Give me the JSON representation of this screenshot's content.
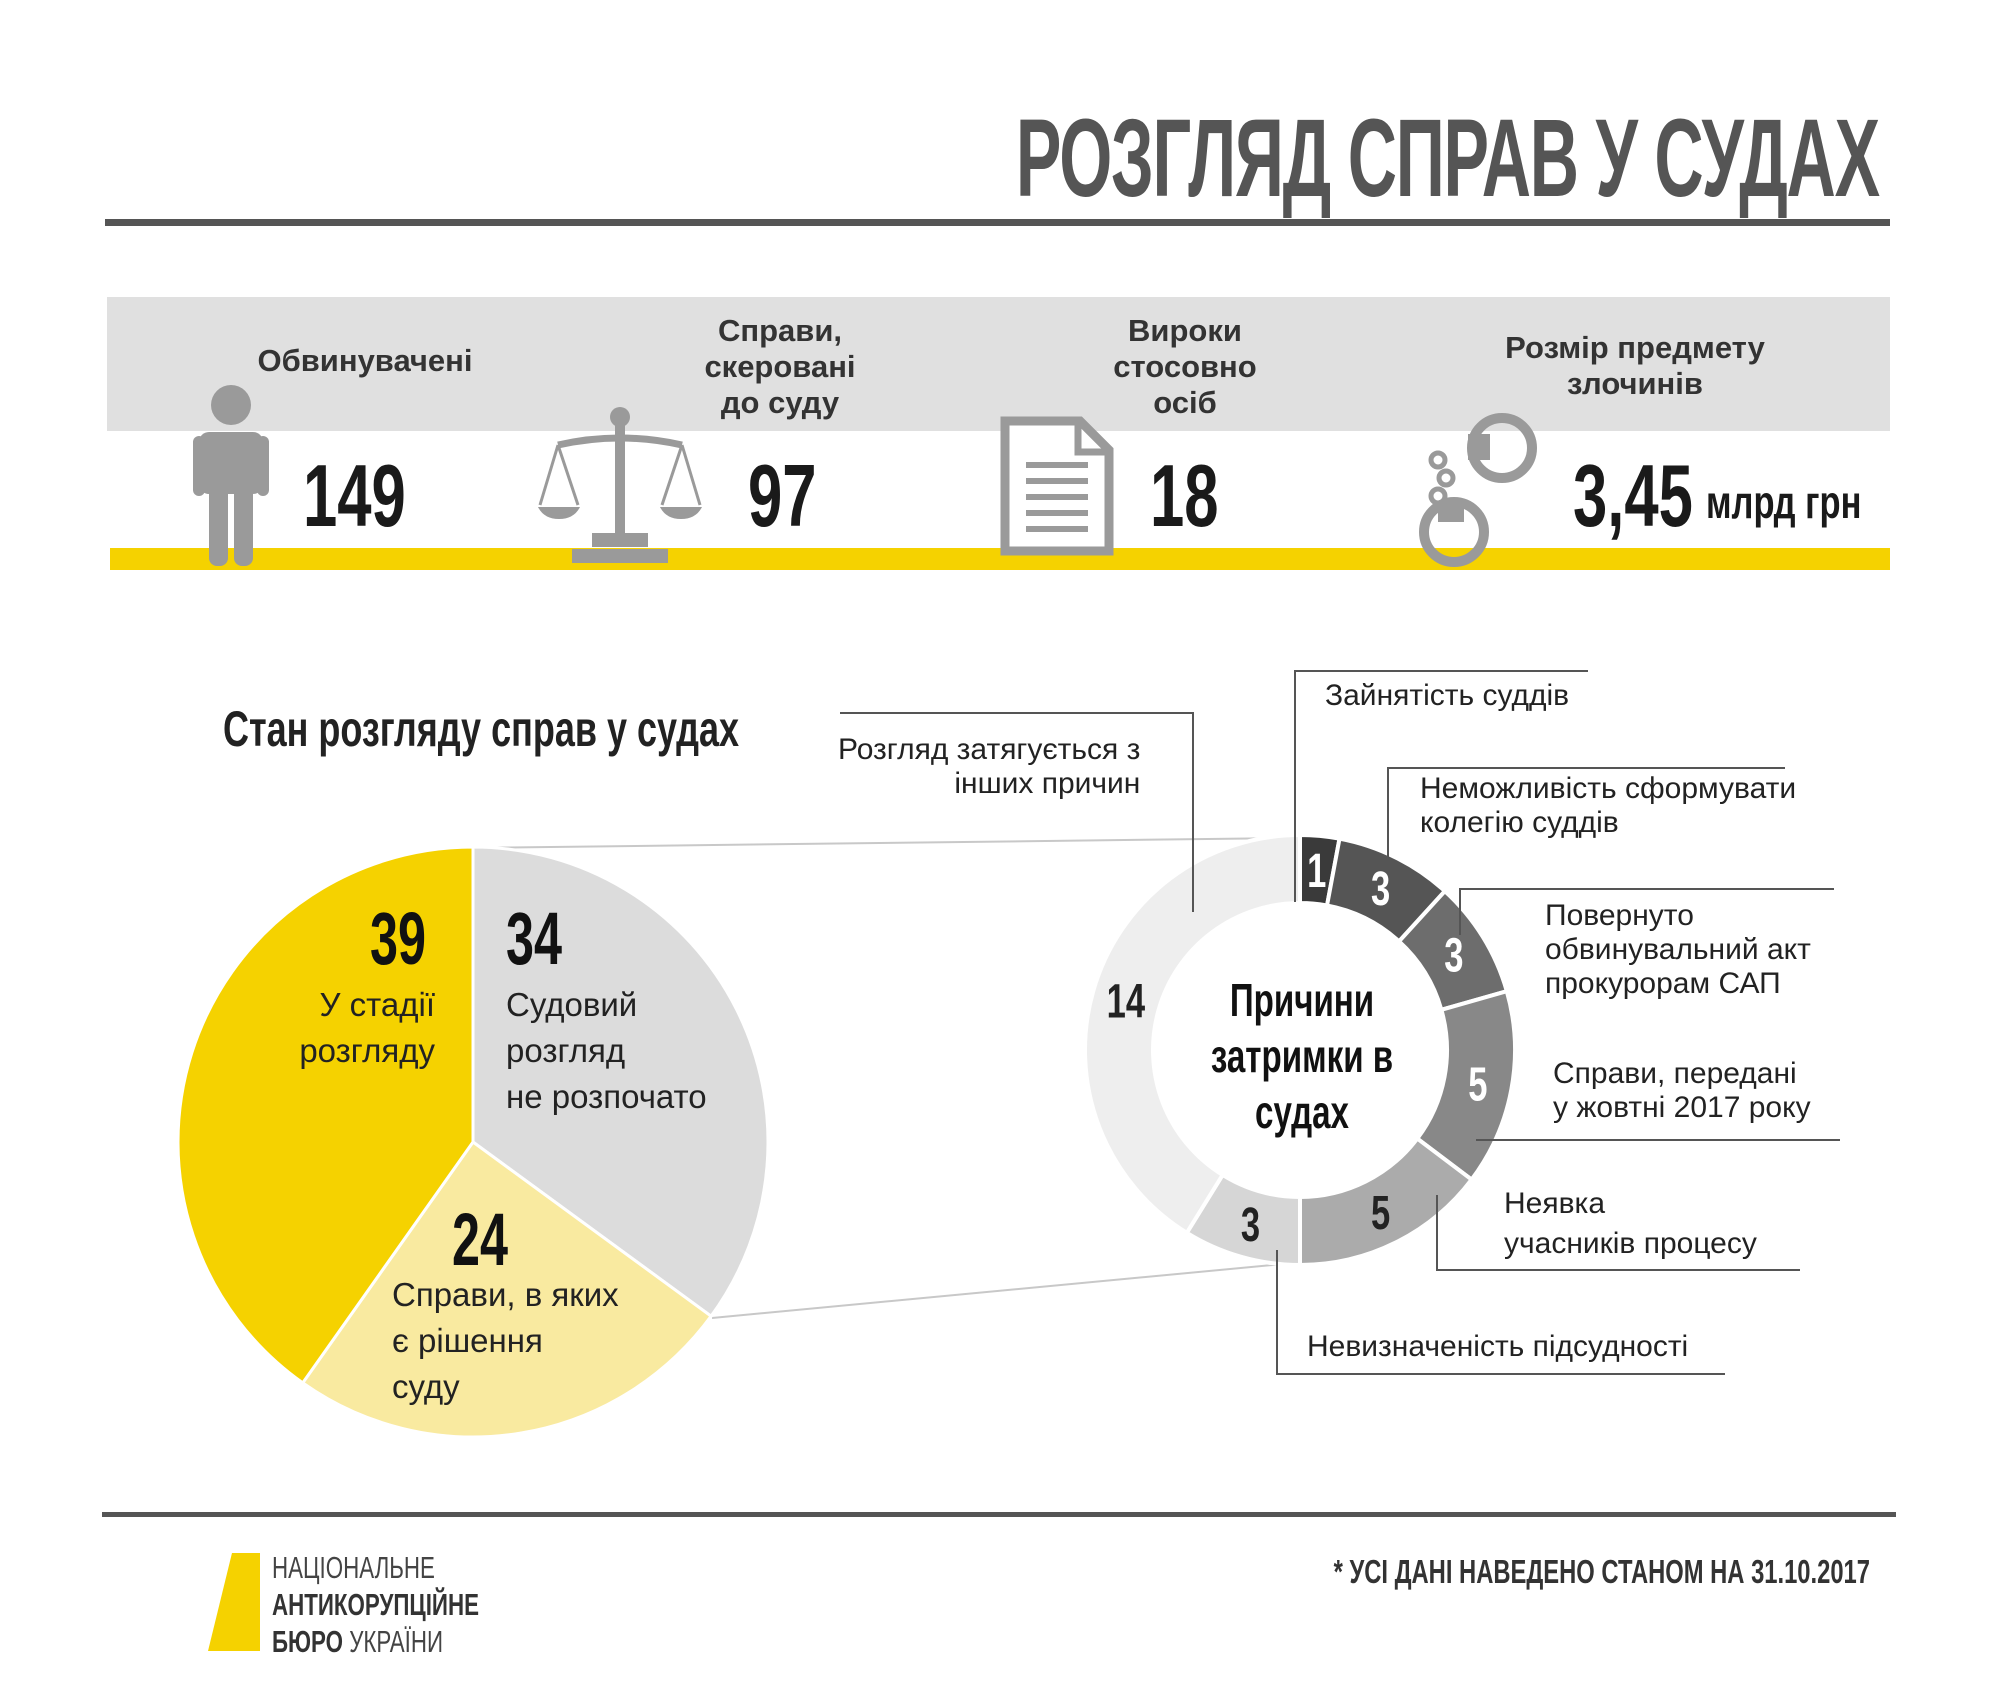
{
  "header": {
    "title": "РОЗГЛЯД СПРАВ У СУДАХ"
  },
  "stats": [
    {
      "label": "Обвинувачені",
      "value": "149",
      "icon": "person-icon"
    },
    {
      "label": "Справи,\nскеровані\nдо суду",
      "value": "97",
      "icon": "scales-icon"
    },
    {
      "label": "Вироки\nстосовно\nосіб",
      "value": "18",
      "icon": "document-icon"
    },
    {
      "label": "Розмір предмету\nзлочинів",
      "value": "3,45",
      "unit": "млрд грн",
      "icon": "handcuffs-icon"
    }
  ],
  "section_title": "Стан розгляду справ у судах",
  "donut_center": "Причини\nзатримки в\nсудах",
  "colors": {
    "accent": "#f5d200",
    "accent_light": "#f9eaa0",
    "grey_band": "#e0e0e0",
    "text_dark": "#555555"
  },
  "chart_data": [
    {
      "type": "pie",
      "title": "Стан розгляду справ у судах",
      "slices": [
        {
          "value": 39,
          "label": "У стадії\nрозгляду",
          "color": "#f5d200"
        },
        {
          "value": 34,
          "label": "Судовий\nрозгляд\nне розпочато",
          "color": "#dcdcdc"
        },
        {
          "value": 24,
          "label": "Справи, в яких\nє рішення\nсуду",
          "color": "#f9eaa0"
        }
      ]
    },
    {
      "type": "pie",
      "donut": true,
      "title": "Причини\nзатримки в\nсудах",
      "slices": [
        {
          "value": 1,
          "label": "Зайнятість суддів",
          "color": "#3a3a3a"
        },
        {
          "value": 3,
          "label": "Неможливість сформувати\nколегію суддів",
          "color": "#555555"
        },
        {
          "value": 3,
          "label": "Повернуто\nобвинувальний акт\nпрокурорам САП",
          "color": "#6d6d6d"
        },
        {
          "value": 5,
          "label": "Справи, передані\nу жовтні 2017 року",
          "color": "#888888"
        },
        {
          "value": 5,
          "label": "Неявка\nучасників процесу",
          "color": "#ababab"
        },
        {
          "value": 3,
          "label": "Невизначеність підсудності",
          "color": "#d6d6d6"
        },
        {
          "value": 14,
          "label": "Розгляд затягується з\nінших причин",
          "color": "#eeeeee"
        }
      ]
    }
  ],
  "footer": {
    "note": "* УСІ ДАНІ НАВЕДЕНО СТАНОМ НА 31.10.2017",
    "logo_line1": "НАЦІОНАЛЬНЕ",
    "logo_line2": "АНТИКОРУПЦІЙНЕ",
    "logo_line3a": "БЮРО",
    "logo_line3b": " УКРАЇНИ"
  }
}
